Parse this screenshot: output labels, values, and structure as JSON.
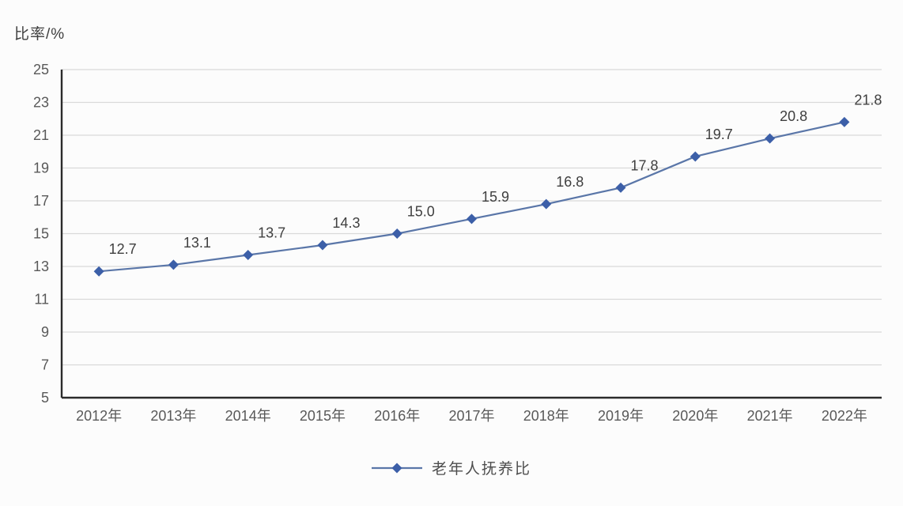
{
  "chart_data": {
    "type": "line",
    "title": "",
    "ylabel": "比率/%",
    "xlabel": "",
    "categories": [
      "2012年",
      "2013年",
      "2014年",
      "2015年",
      "2016年",
      "2017年",
      "2018年",
      "2019年",
      "2020年",
      "2021年",
      "2022年"
    ],
    "series": [
      {
        "name": "老年人抚养比",
        "values": [
          12.7,
          13.1,
          13.7,
          14.3,
          15.0,
          15.9,
          16.8,
          17.8,
          19.7,
          20.8,
          21.8
        ],
        "value_labels": [
          "12.7",
          "13.1",
          "13.7",
          "14.3",
          "15.0",
          "15.9",
          "16.8",
          "17.8",
          "19.7",
          "20.8",
          "21.8"
        ]
      }
    ],
    "ylim": [
      5,
      25
    ],
    "ytick_step": 2,
    "ytick_labels": [
      "5",
      "7",
      "9",
      "11",
      "13",
      "15",
      "17",
      "19",
      "21",
      "23",
      "25"
    ],
    "grid": true,
    "legend_position": "bottom",
    "marker_shape": "diamond",
    "colors": {
      "line": "#5a76a8",
      "marker": "#3c5fa8",
      "grid": "#d9d9d9",
      "axis": "#2b2b2b",
      "tick_text": "#595959",
      "data_label_text": "#3f3f3f"
    }
  }
}
